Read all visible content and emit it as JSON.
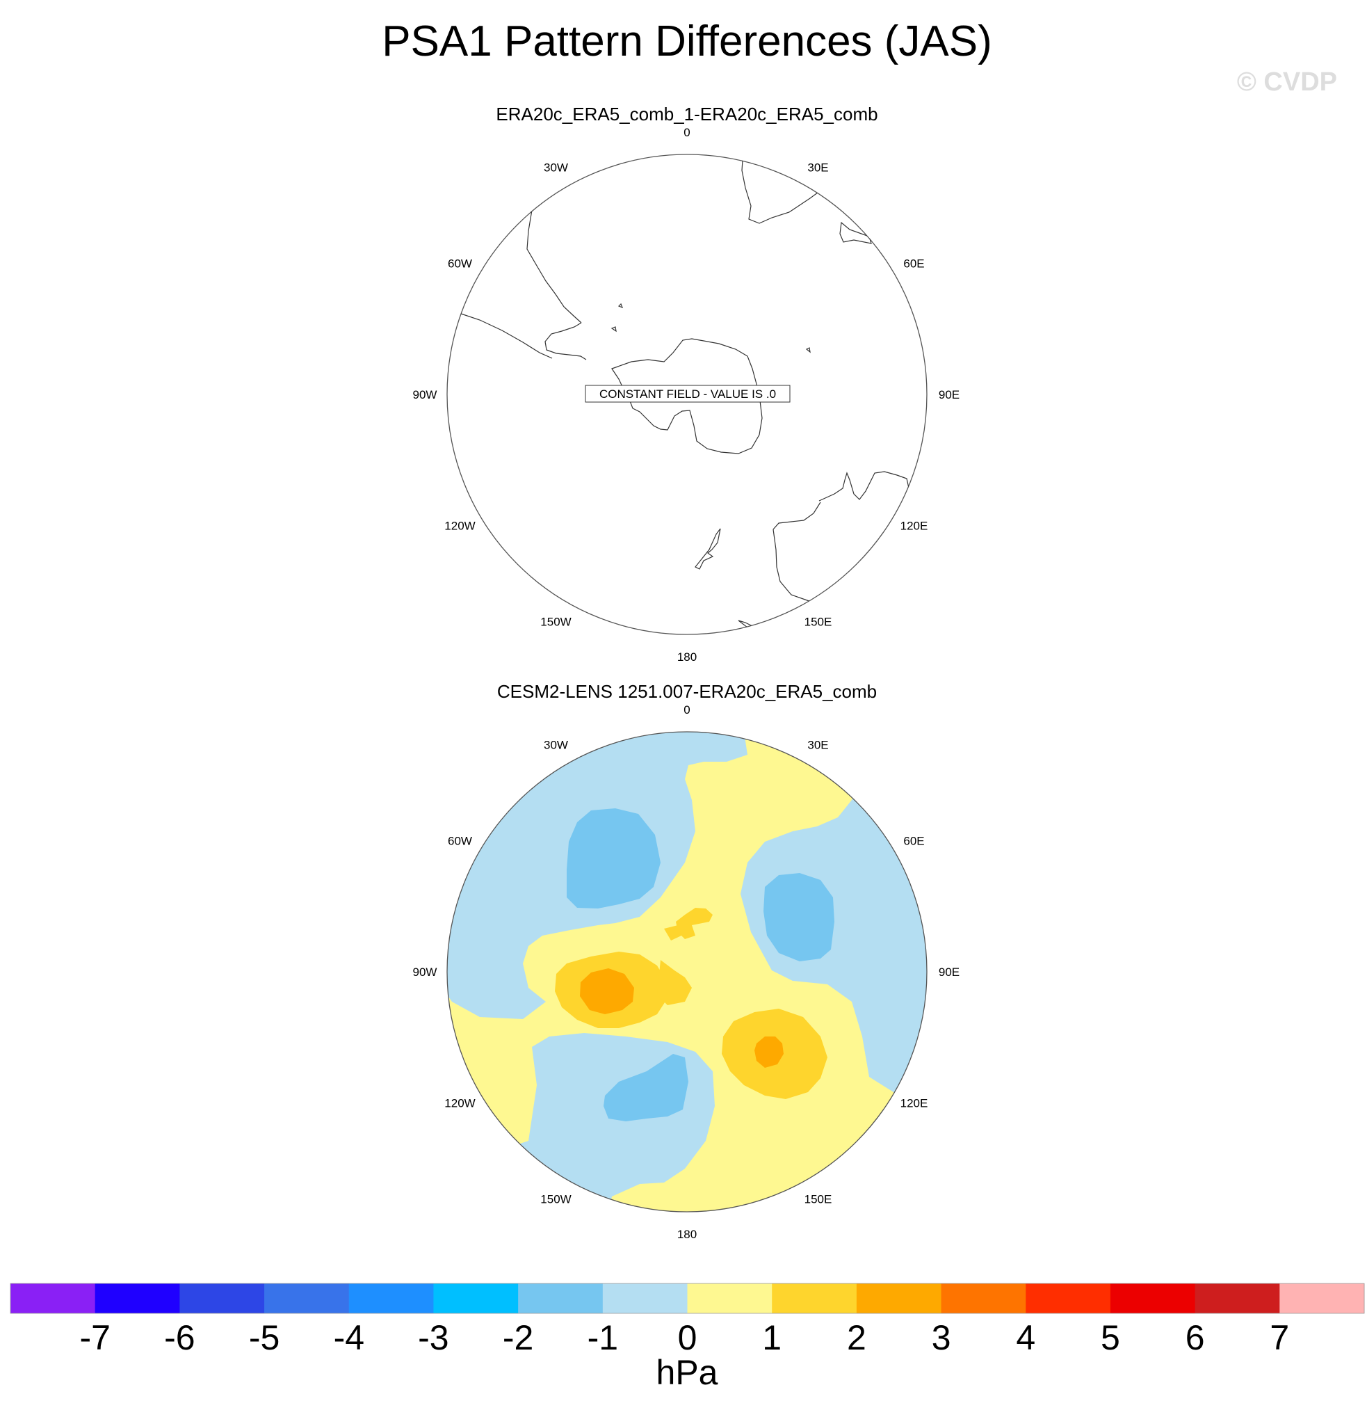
{
  "figure": {
    "title": "PSA1 Pattern Differences (JAS)",
    "watermark": "© CVDP"
  },
  "chart_data": {
    "type": "polar-contour-map",
    "projection": "south-polar-stereographic",
    "units": "hPa",
    "colorbar": {
      "levels": [
        -7,
        -6,
        -5,
        -4,
        -3,
        -2,
        -1,
        0,
        1,
        2,
        3,
        4,
        5,
        6,
        7
      ],
      "labels": [
        "-7",
        "-6",
        "-5",
        "-4",
        "-3",
        "-2",
        "-1",
        "0",
        "1",
        "2",
        "3",
        "4",
        "5",
        "6",
        "7"
      ],
      "colors": [
        "#8a20f5",
        "#1f00ff",
        "#2d46e6",
        "#3873ea",
        "#1e8fff",
        "#00bfff",
        "#76c6f0",
        "#b4def2",
        "#fef891",
        "#fed52d",
        "#fea900",
        "#fe7400",
        "#ff2e00",
        "#ec0000",
        "#ce1e1e",
        "#ffb3b3"
      ]
    },
    "panels": [
      {
        "title": "ERA20c_ERA5_comb_1-ERA20c_ERA5_comb",
        "note": "CONSTANT FIELD - VALUE IS .0",
        "lon_labels": [
          "0",
          "30E",
          "60E",
          "90E",
          "120E",
          "150E",
          "180",
          "150W",
          "120W",
          "90W",
          "60W",
          "30W"
        ]
      },
      {
        "title": "CESM2-LENS 1251.007-ERA20c_ERA5_comb",
        "lon_labels": [
          "0",
          "30E",
          "60E",
          "90E",
          "120E",
          "150E",
          "180",
          "150W",
          "120W",
          "90W",
          "60W",
          "30W"
        ],
        "range_hPa": [
          -2,
          3
        ],
        "centers": [
          {
            "lon": 263,
            "value": 2.6,
            "sign": "positive"
          },
          {
            "lon": 137,
            "value": 2.4,
            "sign": "positive"
          },
          {
            "lon": 320,
            "value": -1.8,
            "sign": "negative"
          },
          {
            "lon": 52,
            "value": -1.6,
            "sign": "negative"
          },
          {
            "lon": 206,
            "value": -1.6,
            "sign": "negative"
          }
        ]
      }
    ]
  }
}
